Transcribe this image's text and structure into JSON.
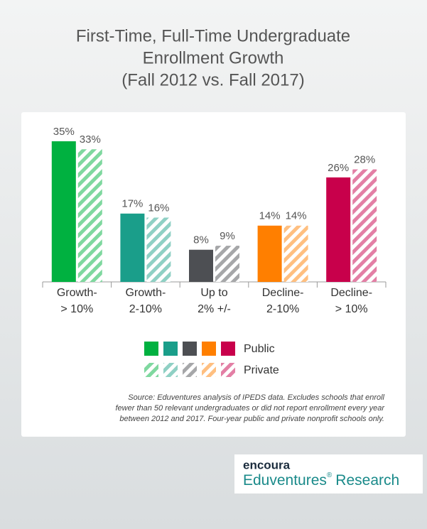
{
  "chart_data": {
    "type": "bar",
    "title": [
      "First-Time, Full-Time Undergraduate",
      "Enrollment Growth",
      "(Fall 2012 vs. Fall 2017)"
    ],
    "categories": [
      [
        "Growth-",
        "> 10%"
      ],
      [
        "Growth-",
        "2-10%"
      ],
      [
        "Up to",
        "2% +/-"
      ],
      [
        "Decline-",
        "2-10%"
      ],
      [
        "Decline-",
        "> 10%"
      ]
    ],
    "series": [
      {
        "name": "Public",
        "colors": [
          "#00b140",
          "#1a9e8a",
          "#4d4f53",
          "#ff7f00",
          "#c8004b"
        ],
        "values": [
          35,
          17,
          8,
          14,
          26
        ],
        "value_labels": [
          "35%",
          "17%",
          "8%",
          "14%",
          "26%"
        ]
      },
      {
        "name": "Private",
        "colors": [
          "#7fd89f",
          "#8fd0c4",
          "#a6a7a9",
          "#ffbf80",
          "#e37fa5"
        ],
        "hatched": true,
        "values": [
          33,
          16,
          9,
          14,
          28
        ],
        "value_labels": [
          "33%",
          "16%",
          "9%",
          "14%",
          "28%"
        ]
      }
    ],
    "source": [
      "Source: Eduventures analysis of IPEDS data. Excludes schools that enroll",
      "fewer than 50 relevant undergraduates or did not report enrollment every year",
      "between 2012 and 2017. Four-year public and private nonprofit schools only."
    ]
  },
  "logo": {
    "brand": "encoura",
    "name": "Eduventures",
    "mark": "®",
    "suffix": "Research"
  }
}
